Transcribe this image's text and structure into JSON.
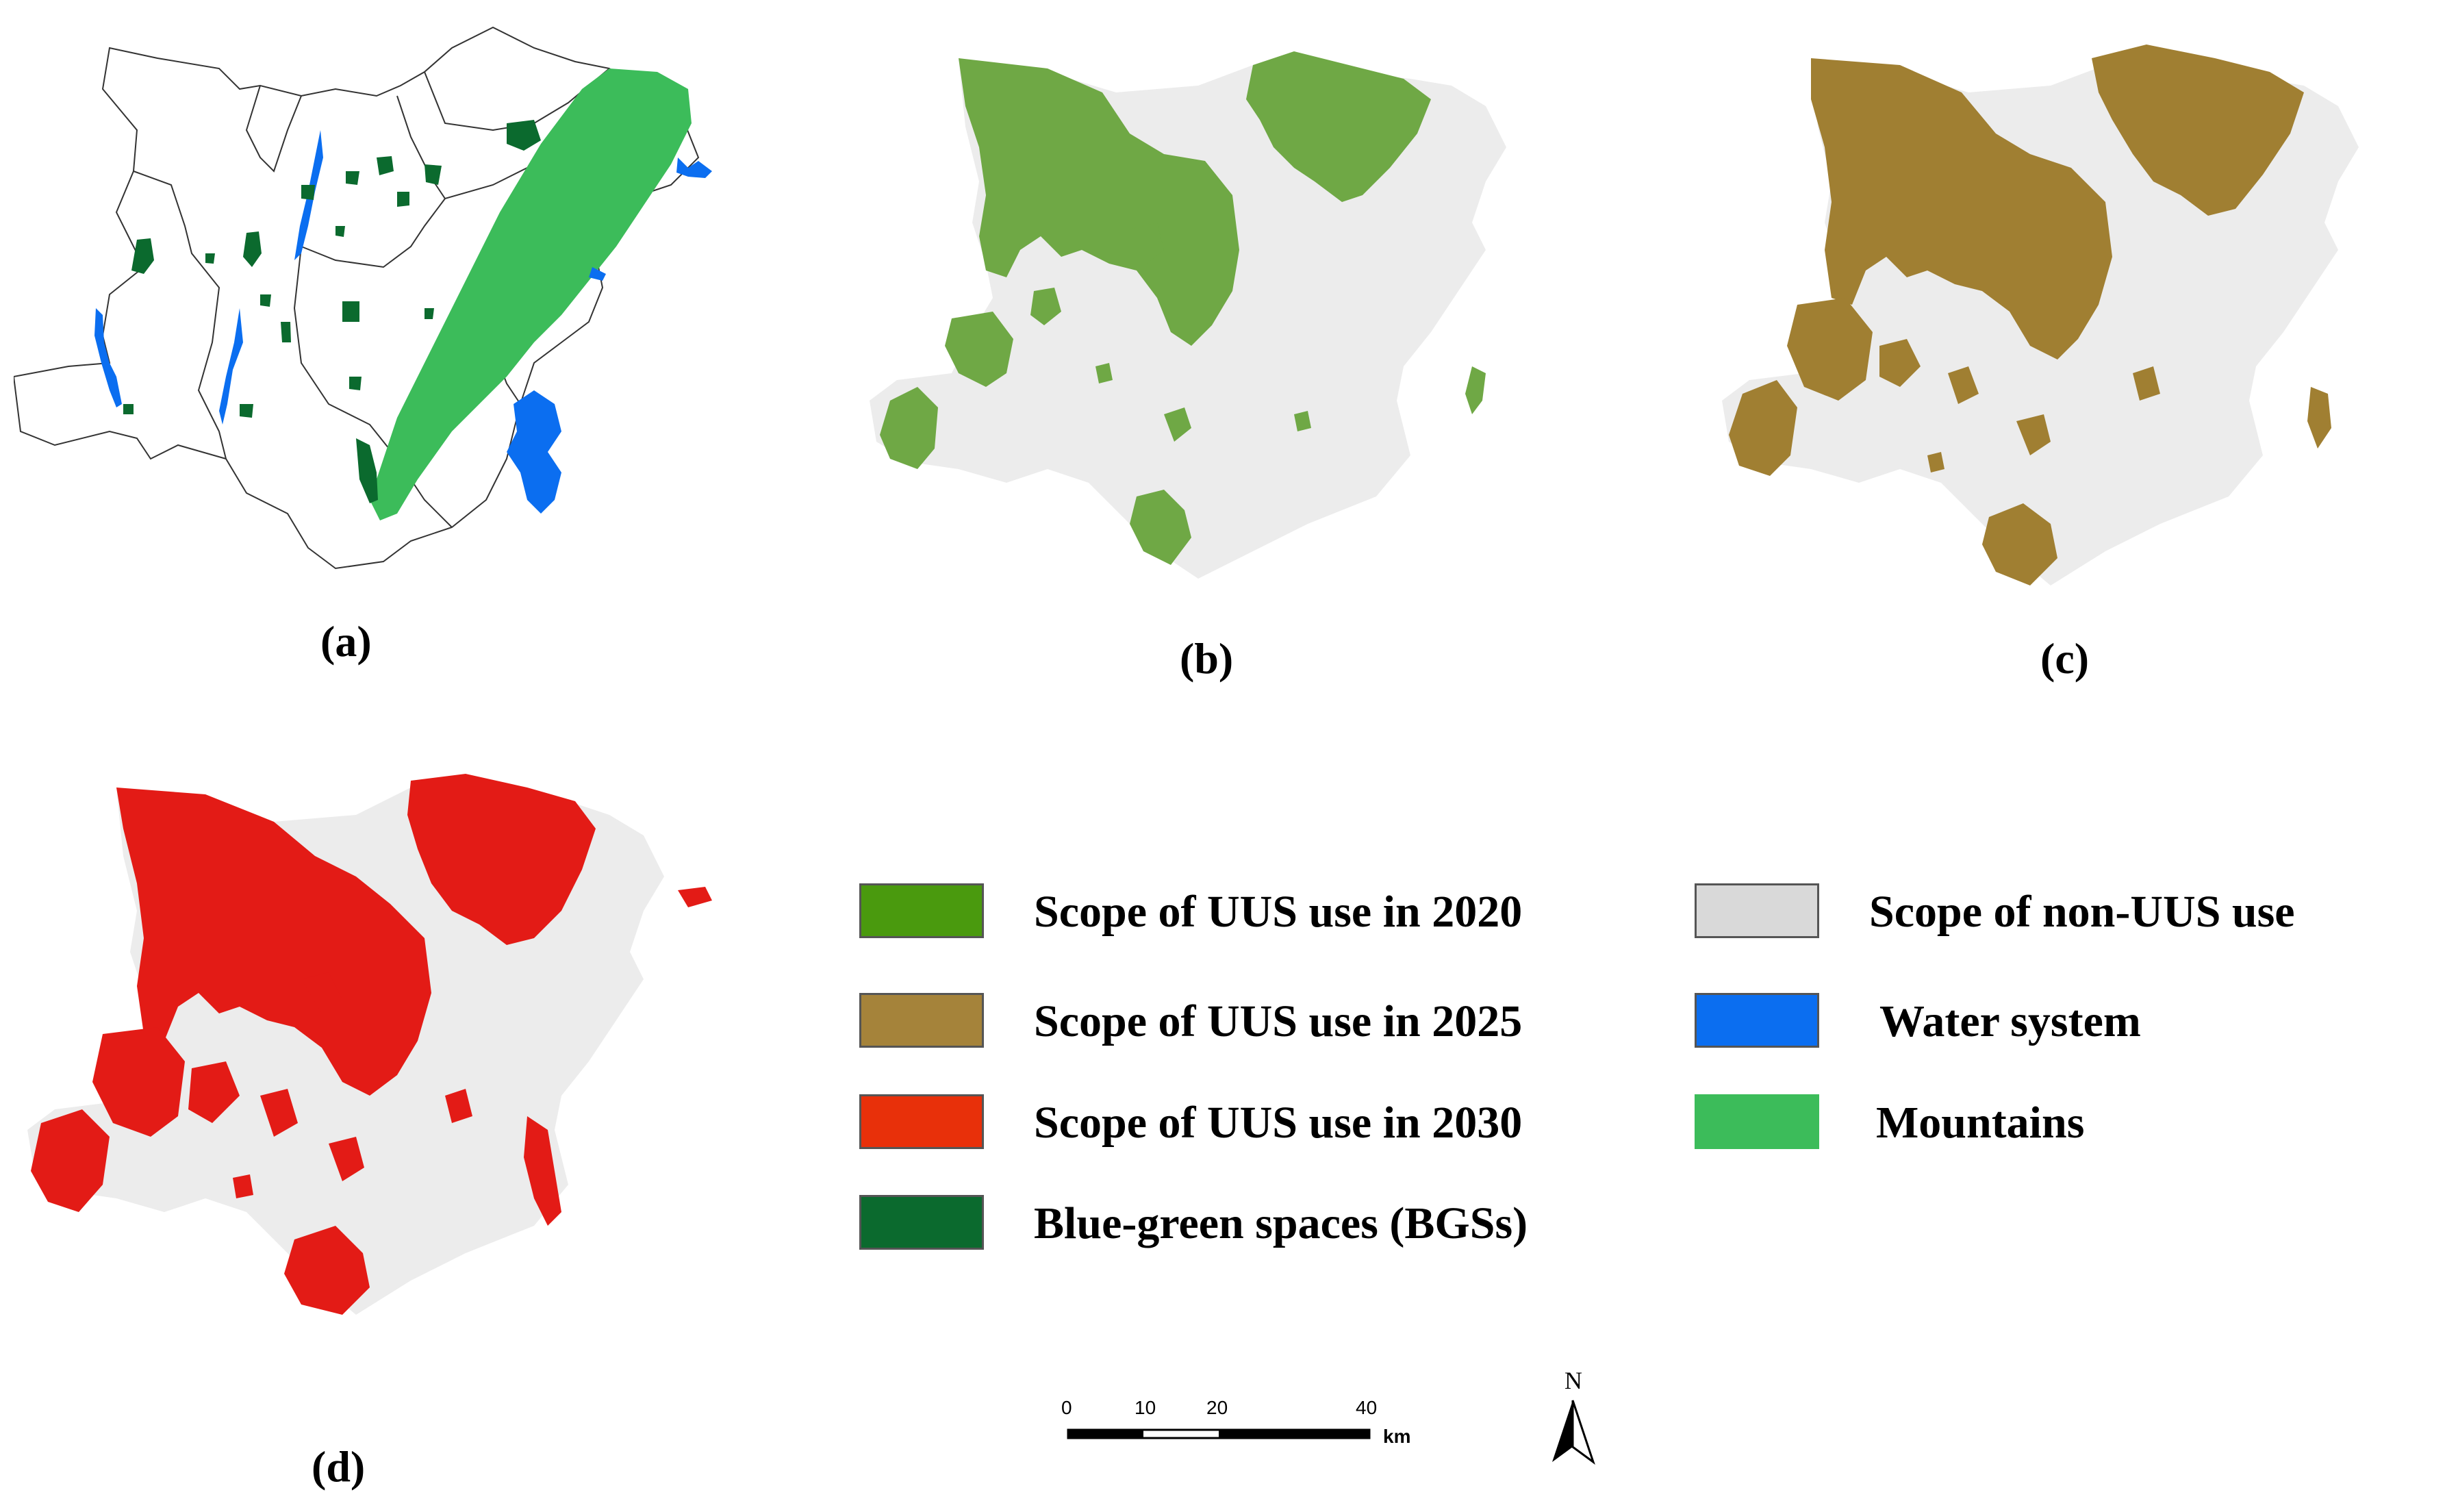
{
  "panels": [
    {
      "id": "a",
      "label": "(a)"
    },
    {
      "id": "b",
      "label": "(b)"
    },
    {
      "id": "c",
      "label": "(c)"
    },
    {
      "id": "d",
      "label": "(d)"
    }
  ],
  "legend": {
    "items": [
      {
        "label": "Scope of UUS use in 2020",
        "color": "#4a9a0e"
      },
      {
        "label": "Scope of UUS use in 2025",
        "color": "#a5833a"
      },
      {
        "label": "Scope of UUS use in 2030",
        "color": "#e8300a"
      },
      {
        "label": "Blue-green spaces (BGSs)",
        "color": "#0b6a2e"
      },
      {
        "label": "Scope of non-UUS use",
        "color": "#d9d9d9"
      },
      {
        "label": "Water system",
        "color": "#0b6ef0"
      },
      {
        "label": "Mountains",
        "color": "#3cbc5a"
      }
    ]
  },
  "scale_bar": {
    "ticks": [
      "0",
      "10",
      "20",
      "40"
    ],
    "unit": "km"
  },
  "north_arrow": {
    "label": "N"
  },
  "colors": {
    "boundary": "#333333",
    "non_uus": "#ececec",
    "uus_2020": "#6fa845",
    "uus_2025": "#a07f32",
    "uus_2030": "#e31b16"
  }
}
